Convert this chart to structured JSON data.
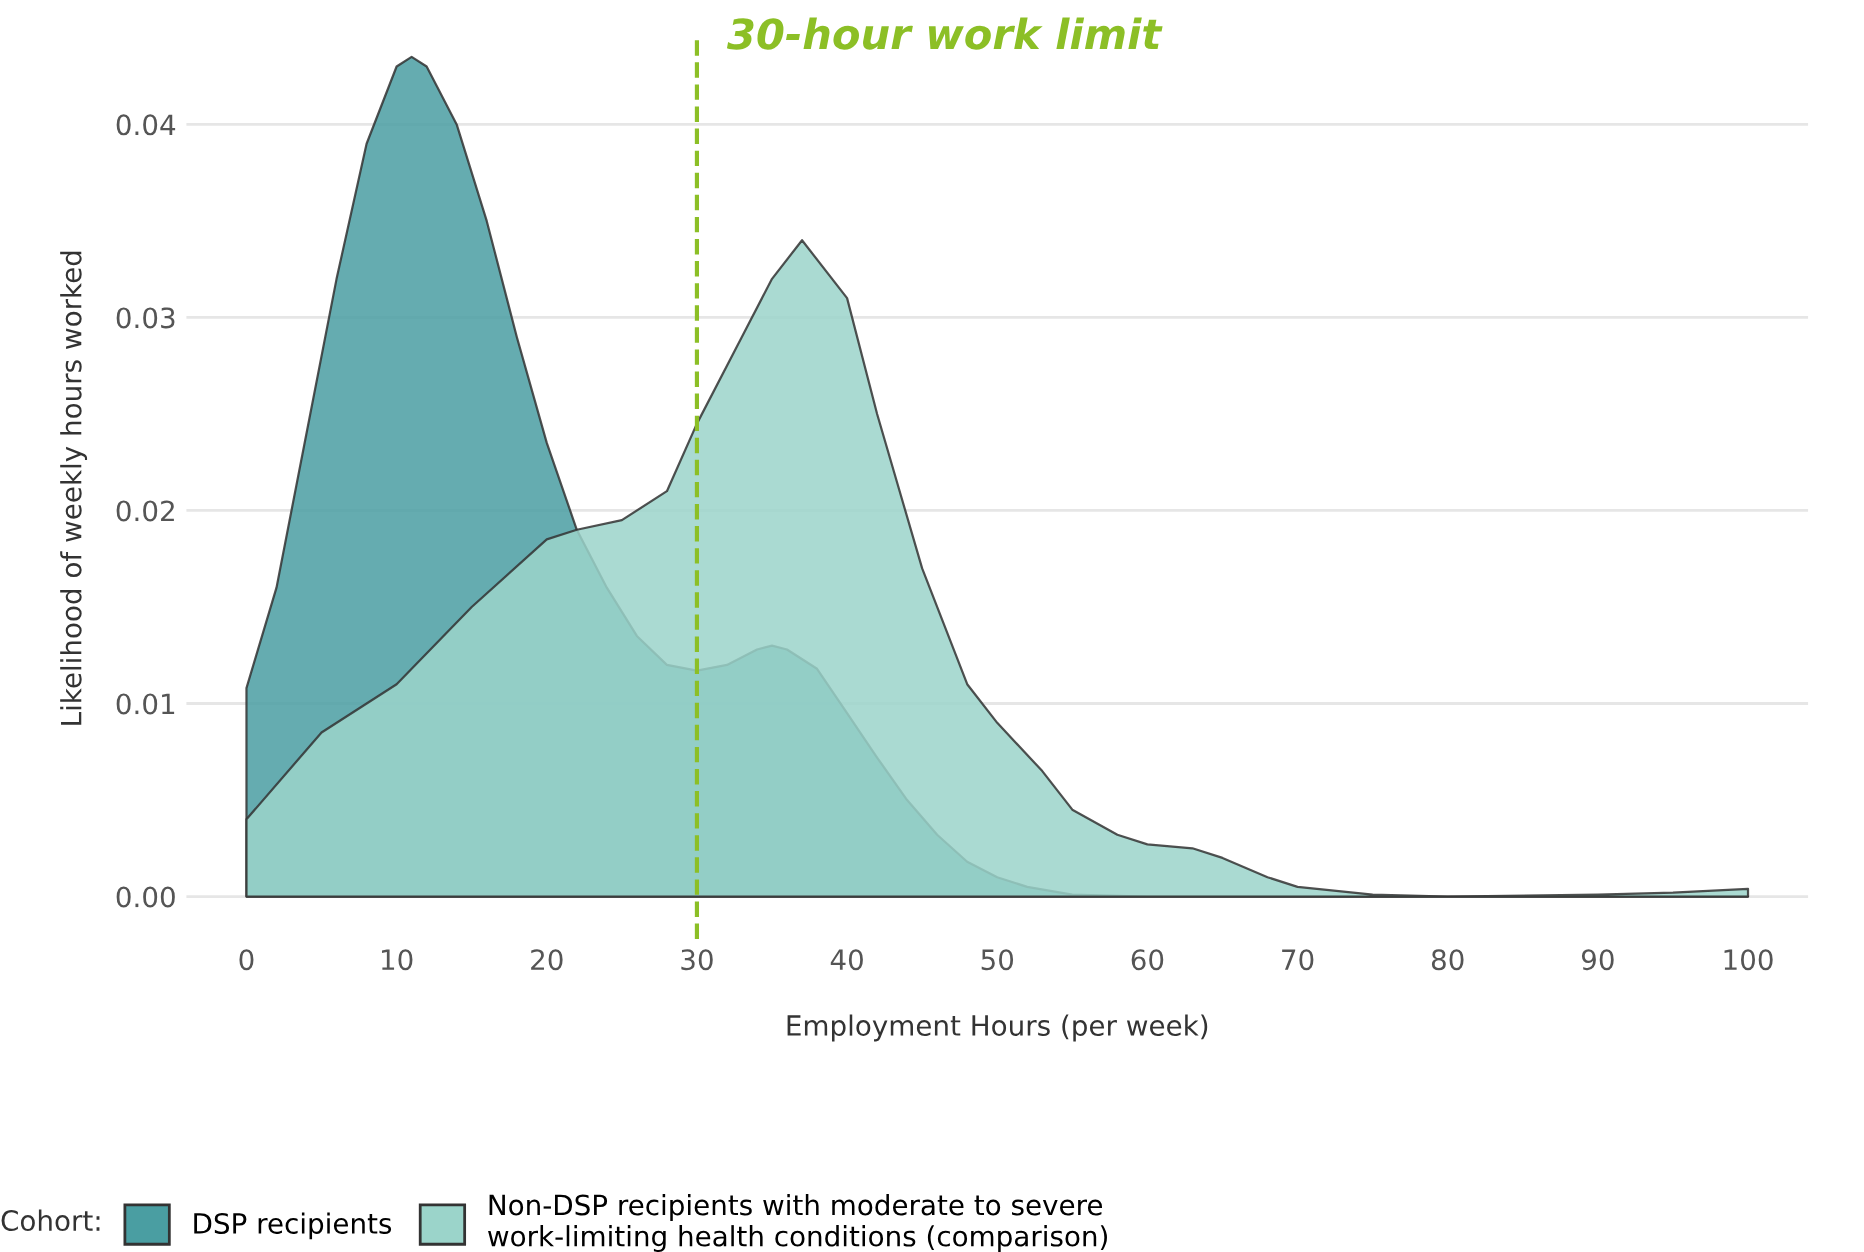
{
  "chart_data": {
    "type": "area",
    "xlabel": "Employment Hours (per week)",
    "ylabel": "Likelihood of weekly hours worked",
    "legend_title": "Cohort:",
    "legend": "bottom",
    "grid": "y",
    "xlim": [
      -4,
      104
    ],
    "ylim": [
      -0.0022,
      0.0445
    ],
    "xticks": [
      0,
      10,
      20,
      30,
      40,
      50,
      60,
      70,
      80,
      90,
      100
    ],
    "yticks": [
      {
        "value": 0,
        "label": "0.00"
      },
      {
        "value": 0.01,
        "label": "0.01"
      },
      {
        "value": 0.02,
        "label": "0.02"
      },
      {
        "value": 0.03,
        "label": "0.03"
      },
      {
        "value": 0.04,
        "label": "0.04"
      }
    ],
    "ref_lines": [
      {
        "axis": "x",
        "value": 30,
        "label": "30-hour work limit",
        "color": "#8cbf26",
        "line_style": "dashed"
      }
    ],
    "series": [
      {
        "name": "DSP recipients",
        "color": "#4a9ea2",
        "x": [
          0,
          2,
          4,
          6,
          8,
          10,
          11,
          12,
          14,
          16,
          18,
          20,
          22,
          24,
          26,
          28,
          30,
          32,
          34,
          35,
          36,
          38,
          40,
          42,
          44,
          46,
          48,
          50,
          52,
          55,
          60,
          70,
          80,
          90,
          100
        ],
        "values": [
          0.0108,
          0.016,
          0.024,
          0.032,
          0.039,
          0.043,
          0.0435,
          0.043,
          0.04,
          0.035,
          0.029,
          0.0235,
          0.019,
          0.016,
          0.0135,
          0.012,
          0.0117,
          0.012,
          0.0128,
          0.013,
          0.0128,
          0.0118,
          0.0095,
          0.0072,
          0.005,
          0.0032,
          0.0018,
          0.001,
          0.0005,
          0.0001,
          0,
          0,
          0,
          0,
          0
        ]
      },
      {
        "name": "Non-DSP recipients with moderate to severe\nwork-limiting health conditions (comparison)",
        "color": "#9bd4ca",
        "x": [
          0,
          5,
          10,
          15,
          20,
          22,
          25,
          28,
          30,
          33,
          35,
          37,
          40,
          42,
          45,
          48,
          50,
          53,
          55,
          58,
          60,
          63,
          65,
          68,
          70,
          75,
          80,
          90,
          95,
          100
        ],
        "values": [
          0.004,
          0.0085,
          0.011,
          0.015,
          0.0185,
          0.019,
          0.0195,
          0.021,
          0.0245,
          0.029,
          0.032,
          0.034,
          0.031,
          0.025,
          0.017,
          0.011,
          0.009,
          0.0065,
          0.0045,
          0.0032,
          0.0027,
          0.0025,
          0.002,
          0.001,
          0.0005,
          0.0001,
          0,
          0.0001,
          0.0002,
          0.0004
        ]
      }
    ]
  }
}
